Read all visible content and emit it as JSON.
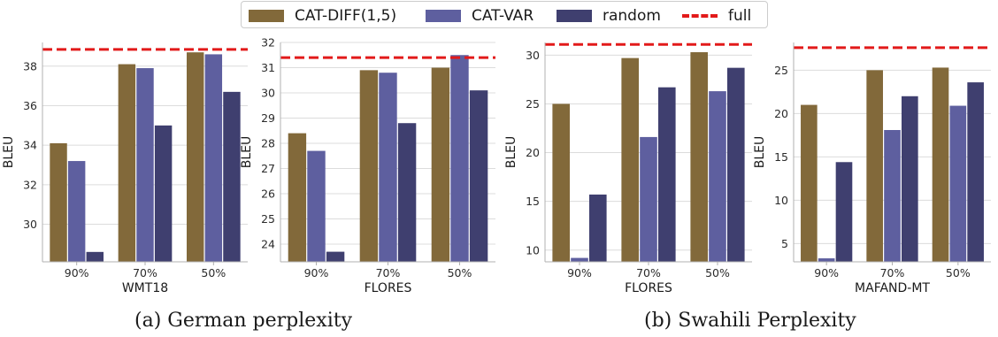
{
  "colors": {
    "CAT-DIFF(1,5)": "#82693a",
    "CAT-VAR": "#5e5f9f",
    "random": "#3f3f6f",
    "full": "#e21a1a",
    "grid": "#dcdcdc",
    "spine": "#b0b0b0"
  },
  "legend": {
    "items": [
      {
        "label": "CAT-DIFF(1,5)",
        "kind": "bar"
      },
      {
        "label": "CAT-VAR",
        "kind": "bar"
      },
      {
        "label": "random",
        "kind": "bar"
      },
      {
        "label": "full",
        "kind": "dashed-line"
      }
    ],
    "placement": "top-center"
  },
  "captions": {
    "a": "(a) German perplexity",
    "b": "(b) Swahili Perplexity"
  },
  "chart_data": [
    {
      "type": "bar",
      "group": "a",
      "categories": [
        "90%",
        "70%",
        "50%"
      ],
      "xlabel": "WMT18",
      "ylabel": "BLEU",
      "ylim": [
        28.1,
        39.2
      ],
      "yticks": [
        30,
        32,
        34,
        36,
        38
      ],
      "series": [
        {
          "name": "CAT-DIFF(1,5)",
          "values": [
            34.1,
            38.1,
            38.7
          ]
        },
        {
          "name": "CAT-VAR",
          "values": [
            33.2,
            37.9,
            38.6
          ]
        },
        {
          "name": "random",
          "values": [
            28.6,
            35.0,
            36.7
          ]
        }
      ],
      "reference": {
        "name": "full",
        "value": 38.85
      },
      "grid": true
    },
    {
      "type": "bar",
      "group": "a",
      "categories": [
        "90%",
        "70%",
        "50%"
      ],
      "xlabel": "FLORES",
      "ylabel": "BLEU",
      "ylim": [
        23.3,
        32.0
      ],
      "yticks": [
        24,
        25,
        26,
        27,
        28,
        29,
        30,
        31,
        32
      ],
      "series": [
        {
          "name": "CAT-DIFF(1,5)",
          "values": [
            28.4,
            30.9,
            31.0
          ]
        },
        {
          "name": "CAT-VAR",
          "values": [
            27.7,
            30.8,
            31.5
          ]
        },
        {
          "name": "random",
          "values": [
            23.7,
            28.8,
            30.1
          ]
        }
      ],
      "reference": {
        "name": "full",
        "value": 31.4
      },
      "grid": true
    },
    {
      "type": "bar",
      "group": "b",
      "categories": [
        "90%",
        "70%",
        "50%"
      ],
      "xlabel": "FLORES",
      "ylabel": "BLEU",
      "ylim": [
        8.8,
        31.3
      ],
      "yticks": [
        10,
        15,
        20,
        25,
        30
      ],
      "series": [
        {
          "name": "CAT-DIFF(1,5)",
          "values": [
            25.0,
            29.7,
            30.3
          ]
        },
        {
          "name": "CAT-VAR",
          "values": [
            9.2,
            21.6,
            26.3
          ]
        },
        {
          "name": "random",
          "values": [
            15.7,
            26.7,
            28.7
          ]
        }
      ],
      "reference": {
        "name": "full",
        "value": 31.1
      },
      "grid": true
    },
    {
      "type": "bar",
      "group": "b",
      "categories": [
        "90%",
        "70%",
        "50%"
      ],
      "xlabel": "MAFAND-MT",
      "ylabel": "BLEU",
      "ylim": [
        2.9,
        28.2
      ],
      "yticks": [
        5,
        10,
        15,
        20,
        25
      ],
      "series": [
        {
          "name": "CAT-DIFF(1,5)",
          "values": [
            21.0,
            25.0,
            25.3
          ]
        },
        {
          "name": "CAT-VAR",
          "values": [
            3.3,
            18.1,
            20.9
          ]
        },
        {
          "name": "random",
          "values": [
            14.4,
            22.0,
            23.6
          ]
        }
      ],
      "reference": {
        "name": "full",
        "value": 27.6
      },
      "grid": true
    }
  ]
}
